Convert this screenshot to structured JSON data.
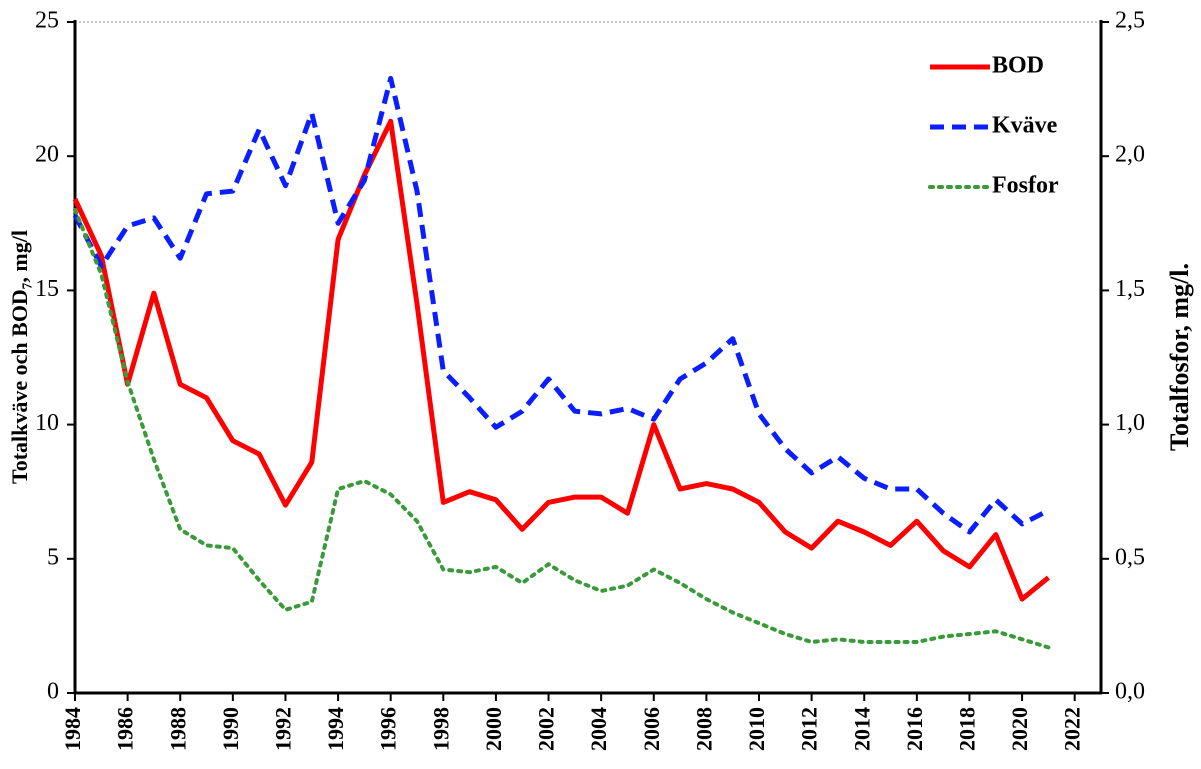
{
  "chart_data": {
    "type": "line",
    "y_label": "Totalkväve och BOD₇, mg/l",
    "y2_label": "Totalfosfor, mg/l.",
    "x": [
      1984,
      1985,
      1986,
      1987,
      1988,
      1989,
      1990,
      1991,
      1992,
      1993,
      1994,
      1995,
      1996,
      1997,
      1998,
      1999,
      2000,
      2001,
      2002,
      2003,
      2004,
      2005,
      2006,
      2007,
      2008,
      2009,
      2010,
      2011,
      2012,
      2013,
      2014,
      2015,
      2016,
      2017,
      2018,
      2019,
      2020,
      2021
    ],
    "xlim": [
      1984,
      2023
    ],
    "xticks": [
      1984,
      1986,
      1988,
      1990,
      1992,
      1994,
      1996,
      1998,
      2000,
      2002,
      2004,
      2006,
      2008,
      2010,
      2012,
      2014,
      2016,
      2018,
      2020,
      2022
    ],
    "ylim": [
      0,
      25
    ],
    "yticks": [
      0,
      5,
      10,
      15,
      20,
      25
    ],
    "y2lim": [
      0,
      2.5
    ],
    "y2ticks": [
      {
        "value": 0,
        "label": "0,0"
      },
      {
        "value": 0.5,
        "label": "0,5"
      },
      {
        "value": 1,
        "label": "1,0"
      },
      {
        "value": 1.5,
        "label": "1,5"
      },
      {
        "value": 2,
        "label": "2,0"
      },
      {
        "value": 2.5,
        "label": "2,5"
      }
    ],
    "legend": "top-right",
    "series": [
      {
        "name": "BOD",
        "color": "#ff0000",
        "style": "solid",
        "values": [
          18.4,
          16.3,
          11.5,
          14.9,
          11.5,
          11.0,
          9.4,
          8.9,
          7.0,
          8.6,
          16.9,
          19.3,
          21.3,
          14.5,
          7.1,
          7.5,
          7.2,
          6.1,
          7.1,
          7.3,
          7.3,
          6.7,
          10.0,
          7.6,
          7.8,
          7.6,
          7.1,
          6.0,
          5.4,
          6.4,
          6.0,
          5.5,
          6.4,
          5.3,
          4.7,
          5.9,
          3.5,
          4.3
        ]
      },
      {
        "name": "Kväve",
        "color": "#0a1eff",
        "style": "dashed",
        "values": [
          17.8,
          15.9,
          17.4,
          17.7,
          16.2,
          18.6,
          18.7,
          21.0,
          18.9,
          21.6,
          17.5,
          19.1,
          22.9,
          18.7,
          12.0,
          11.0,
          9.9,
          10.5,
          11.7,
          10.5,
          10.4,
          10.6,
          10.2,
          11.7,
          12.3,
          13.2,
          10.4,
          9.1,
          8.2,
          8.8,
          8.0,
          7.6,
          7.6,
          6.7,
          6.0,
          7.2,
          6.3,
          6.8
        ]
      },
      {
        "name": "Fosfor",
        "color": "#3a9a3a",
        "style": "dotted",
        "axis": "y2",
        "values": [
          1.8,
          1.56,
          1.16,
          0.87,
          0.61,
          0.55,
          0.54,
          0.42,
          0.31,
          0.34,
          0.76,
          0.79,
          0.74,
          0.64,
          0.46,
          0.45,
          0.47,
          0.41,
          0.48,
          0.42,
          0.38,
          0.4,
          0.46,
          0.41,
          0.35,
          0.3,
          0.26,
          0.22,
          0.19,
          0.2,
          0.19,
          0.19,
          0.19,
          0.21,
          0.22,
          0.23,
          0.2,
          0.17
        ]
      }
    ]
  }
}
